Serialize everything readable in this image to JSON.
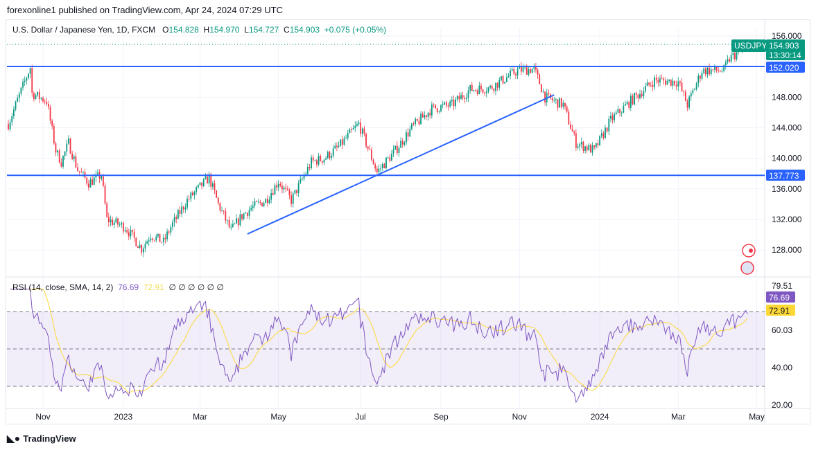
{
  "header": {
    "published": "forexonline1 published on TradingView.com, Apr 24, 2024 07:29 UTC"
  },
  "legend": {
    "symbol": "U.S. Dollar / Japanese Yen, 1D, FXCM",
    "o_label": "O",
    "o": "154.828",
    "h_label": "H",
    "h": "154.970",
    "l_label": "L",
    "l": "154.727",
    "c_label": "C",
    "c": "154.903",
    "change": "+0.075 (+0.05%)"
  },
  "rsi_legend": {
    "label": "RSI (14, close, SMA, 14, 2)",
    "rsi": "76.69",
    "sma": "72.91",
    "empty": "∅ ∅ ∅ ∅ ∅ ∅"
  },
  "price_tags": {
    "symbol": "USDJPY",
    "last": "154.903",
    "countdown": "13:30:14",
    "level_high": "152.020",
    "level_low": "137.773"
  },
  "rsi_tags": {
    "max": "79.51",
    "rsi": "76.69",
    "sma": "72.91"
  },
  "footer": {
    "brand": "TradingView"
  },
  "colors": {
    "up": "#089981",
    "down": "#f23645",
    "levels": "#2962ff",
    "rsi": "#7e57c2",
    "rsi_sma": "#fdd835",
    "rsi_band": "#7e57c2"
  },
  "icons": [
    "economic-event-icon",
    "us-flag-event-icon"
  ],
  "chart_data": [
    {
      "type": "candlestick",
      "title": "U.S. Dollar / Japanese Yen, 1D, FXCM",
      "ylim": [
        124,
        157
      ],
      "y_ticks": [
        "156.000",
        "148.000",
        "144.000",
        "140.000",
        "136.000",
        "132.000",
        "128.000"
      ],
      "x_ticks": [
        "Nov",
        "2023",
        "Mar",
        "May",
        "Jul",
        "Sep",
        "Nov",
        "2024",
        "Mar",
        "May"
      ],
      "grid": true,
      "close_path": [
        [
          "2022-10-05",
          144.5
        ],
        [
          "2022-10-21",
          151.9
        ],
        [
          "2022-10-24",
          148.5
        ],
        [
          "2022-11-03",
          147.5
        ],
        [
          "2022-11-10",
          141
        ],
        [
          "2022-11-15",
          139.5
        ],
        [
          "2022-11-21",
          142
        ],
        [
          "2022-11-28",
          138.5
        ],
        [
          "2022-12-06",
          136.8
        ],
        [
          "2022-12-15",
          137.8
        ],
        [
          "2022-12-20",
          132
        ],
        [
          "2023-01-03",
          131
        ],
        [
          "2023-01-16",
          128.2
        ],
        [
          "2023-01-23",
          130
        ],
        [
          "2023-02-01",
          129
        ],
        [
          "2023-02-07",
          131
        ],
        [
          "2023-02-20",
          134.5
        ],
        [
          "2023-03-08",
          137.5
        ],
        [
          "2023-03-15",
          134
        ],
        [
          "2023-03-24",
          130.5
        ],
        [
          "2023-04-03",
          132.5
        ],
        [
          "2023-04-10",
          133.5
        ],
        [
          "2023-04-20",
          134.5
        ],
        [
          "2023-05-01",
          137
        ],
        [
          "2023-05-10",
          134.5
        ],
        [
          "2023-05-25",
          139.5
        ],
        [
          "2023-06-05",
          140
        ],
        [
          "2023-06-15",
          141.5
        ],
        [
          "2023-06-30",
          144.5
        ],
        [
          "2023-07-14",
          138.2
        ],
        [
          "2023-07-28",
          141
        ],
        [
          "2023-08-10",
          144
        ],
        [
          "2023-08-25",
          146.5
        ],
        [
          "2023-09-10",
          147
        ],
        [
          "2023-09-25",
          149
        ],
        [
          "2023-10-10",
          149.2
        ],
        [
          "2023-10-31",
          151.5
        ],
        [
          "2023-11-13",
          151.7
        ],
        [
          "2023-11-21",
          148
        ],
        [
          "2023-12-05",
          147
        ],
        [
          "2023-12-14",
          142
        ],
        [
          "2023-12-28",
          141
        ],
        [
          "2024-01-10",
          145
        ],
        [
          "2024-01-25",
          147.5
        ],
        [
          "2024-02-13",
          150.2
        ],
        [
          "2024-03-01",
          150
        ],
        [
          "2024-03-08",
          147
        ],
        [
          "2024-03-20",
          151.5
        ],
        [
          "2024-04-05",
          151.5
        ],
        [
          "2024-04-10",
          153
        ],
        [
          "2024-04-24",
          154.9
        ]
      ],
      "levels": [
        152.02,
        137.773
      ],
      "trendline": [
        [
          "2023-04-06",
          130.1
        ],
        [
          "2023-11-28",
          148.3
        ]
      ],
      "last": 154.903
    },
    {
      "type": "line",
      "title": "RSI (14, close, SMA, 14, 2)",
      "ylim": [
        18,
        82
      ],
      "y_ticks": [
        "79.51",
        "60.03",
        "40.00",
        "20.00"
      ],
      "band": [
        30,
        70
      ],
      "midline": 50,
      "last_rsi": 76.69,
      "last_sma": 72.91
    }
  ]
}
